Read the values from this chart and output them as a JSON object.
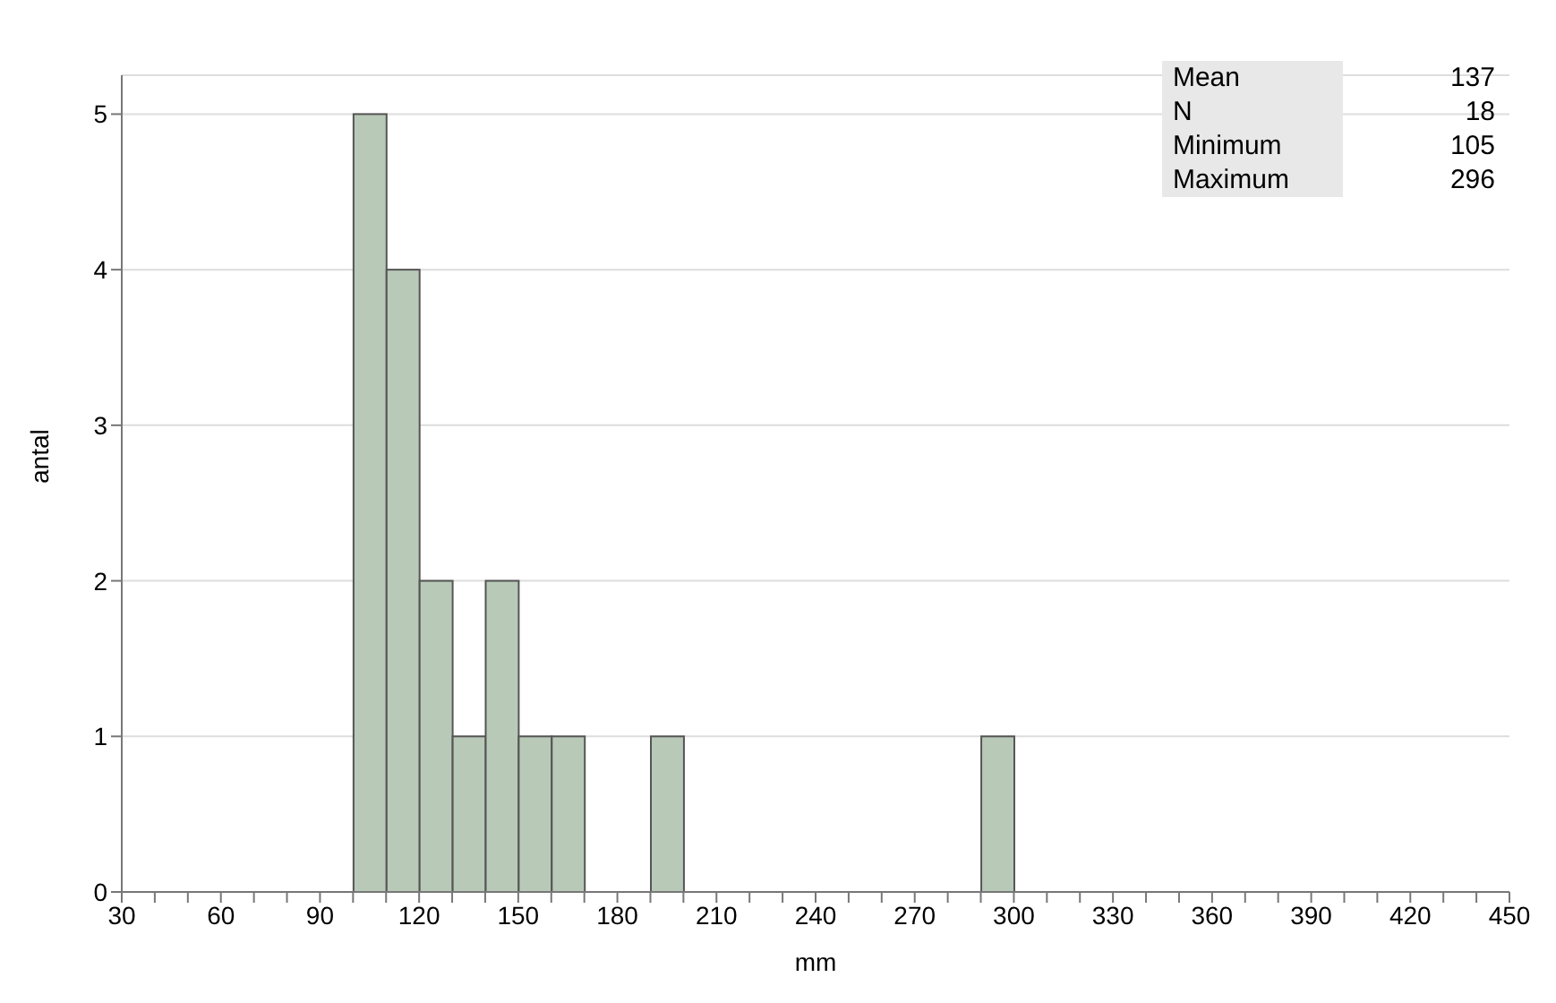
{
  "chart_data": {
    "type": "histogram",
    "xlabel": "mm",
    "ylabel": "antal",
    "bins": [
      100,
      110,
      120,
      130,
      140,
      150,
      160,
      170,
      180,
      190,
      200,
      210,
      220,
      230,
      240,
      250,
      260,
      270,
      280,
      290,
      300
    ],
    "values": [
      5,
      4,
      2,
      1,
      2,
      1,
      1,
      0,
      0,
      1,
      0,
      0,
      0,
      0,
      0,
      0,
      0,
      0,
      0,
      1
    ],
    "color": "#b8c9b8",
    "xlim": [
      30,
      450
    ],
    "xticks": [
      30,
      {
        "value": 40,
        "label": null
      },
      {
        "value": 50,
        "label": null
      },
      60,
      {
        "value": 70,
        "label": null
      },
      {
        "value": 80,
        "label": null
      },
      90,
      {
        "value": 100,
        "label": null
      },
      {
        "value": 110,
        "label": null
      },
      120,
      {
        "value": 130,
        "label": null
      },
      {
        "value": 140,
        "label": null
      },
      150,
      {
        "value": 160,
        "label": null
      },
      {
        "value": 170,
        "label": null
      },
      180,
      {
        "value": 190,
        "label": null
      },
      {
        "value": 200,
        "label": null
      },
      210,
      {
        "value": 220,
        "label": null
      },
      {
        "value": 230,
        "label": null
      },
      240,
      {
        "value": 250,
        "label": null
      },
      {
        "value": 260,
        "label": null
      },
      270,
      {
        "value": 280,
        "label": null
      },
      {
        "value": 290,
        "label": null
      },
      300,
      {
        "value": 310,
        "label": null
      },
      {
        "value": 320,
        "label": null
      },
      330,
      {
        "value": 340,
        "label": null
      },
      {
        "value": 350,
        "label": null
      },
      360,
      {
        "value": 370,
        "label": null
      },
      {
        "value": 380,
        "label": null
      },
      390,
      {
        "value": 400,
        "label": null
      },
      {
        "value": 410,
        "label": null
      },
      420,
      {
        "value": 430,
        "label": null
      },
      {
        "value": 440,
        "label": null
      },
      450
    ],
    "ylim": [
      0,
      5.25
    ],
    "yticks": [
      0,
      1,
      2,
      3,
      4,
      5
    ],
    "grid": "y",
    "annotations": [
      "Mean",
      "137",
      "N",
      "18",
      "Minimum",
      "105",
      "Maximum",
      "296"
    ]
  }
}
